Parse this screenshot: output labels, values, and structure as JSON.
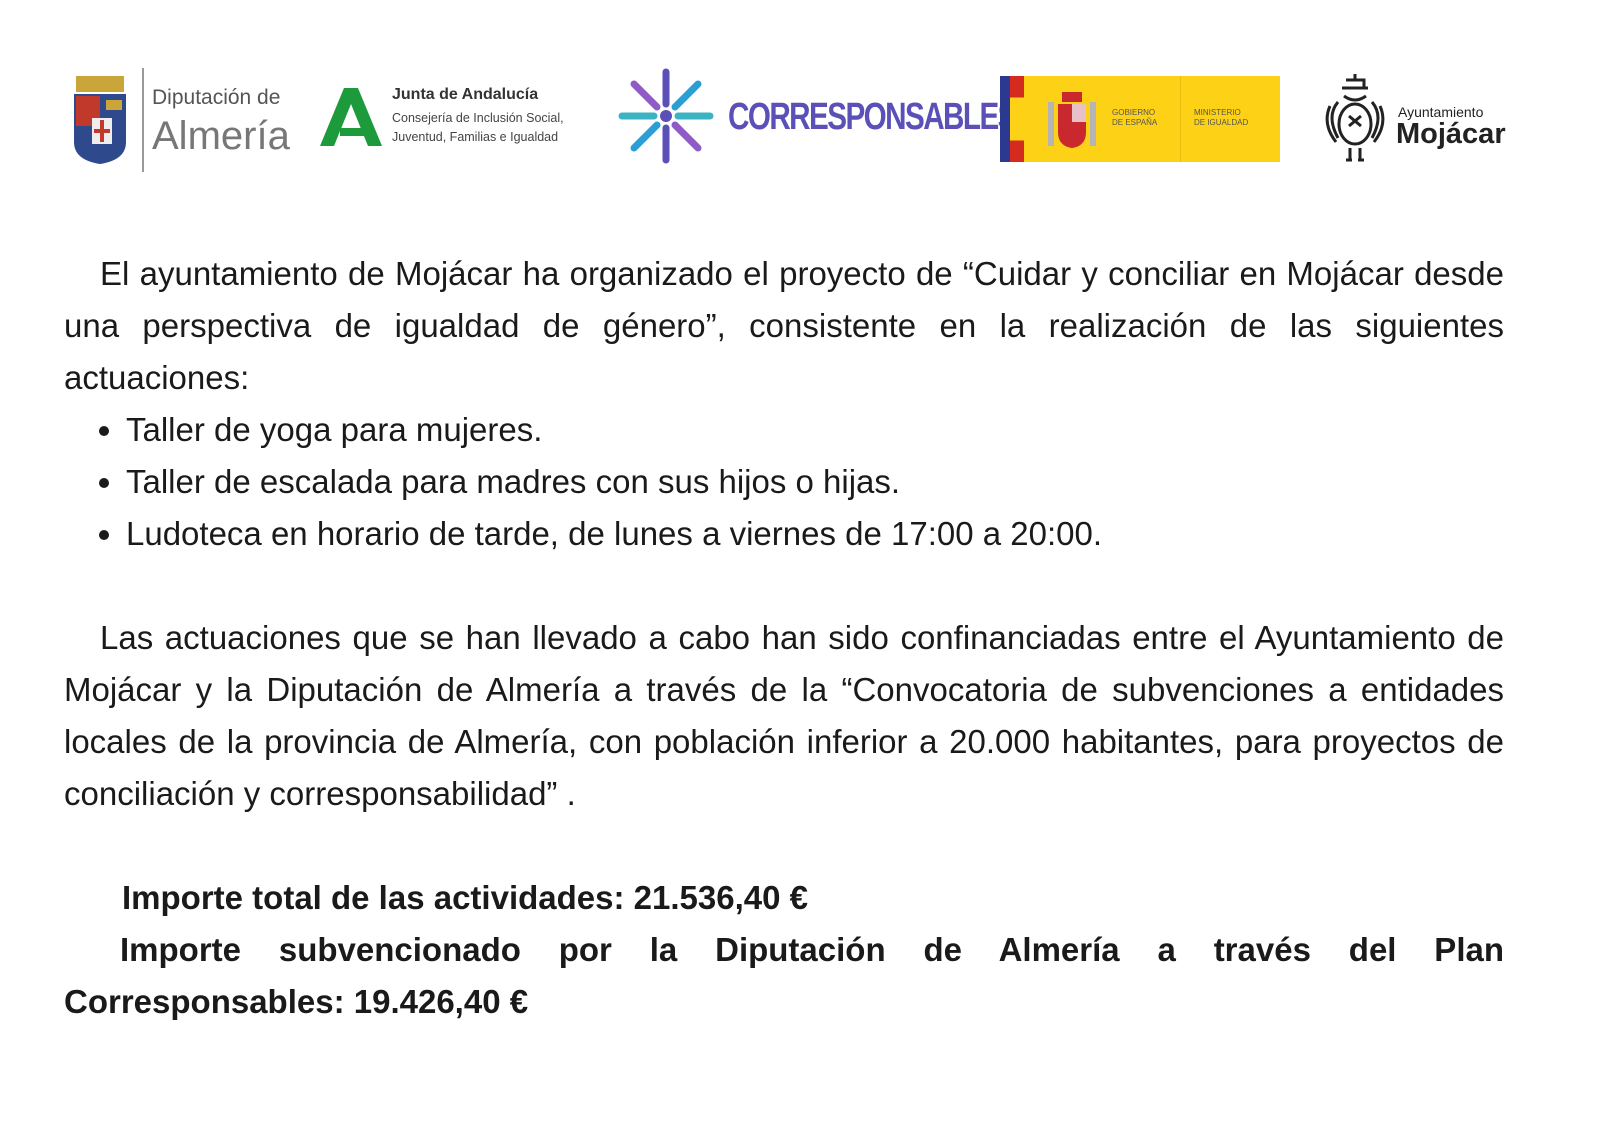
{
  "logos": {
    "diputacion": {
      "line1": "Diputación de",
      "line2": "Almería"
    },
    "junta": {
      "title": "Junta de Andalucía",
      "line1": "Consejería de Inclusión Social,",
      "line2": "Juventud, Familias e Igualdad",
      "color": "#1d9a3c"
    },
    "corresponsables": {
      "text": "CORRESPONSABLES",
      "color": "#5b4fb8"
    },
    "gobierno": {
      "left": "GOBIERNO",
      "left2": "DE ESPAÑA",
      "right": "MINISTERIO",
      "right2": "DE IGUALDAD",
      "color": "#fcd116"
    },
    "mojacar": {
      "line1": "Ayuntamiento",
      "line2": "Mojácar"
    }
  },
  "body": {
    "intro": "El ayuntamiento de Mojácar ha organizado el proyecto de “Cuidar y conciliar en Mojácar desde una perspectiva de igualdad de género”, consistente en la realización de las siguientes actuaciones:",
    "items": [
      "Taller de yoga para mujeres.",
      "Taller de escalada para madres con sus hijos o hijas.",
      "Ludoteca en horario de tarde, de lunes a viernes de 17:00 a 20:00."
    ],
    "funding": "Las actuaciones que se han llevado a cabo han sido confinanciadas entre el Ayuntamiento de Mojácar y la Diputación de Almería a través de la “Convocatoria de subvenciones a entidades locales de la provincia de Almería, con población inferior a 20.000 habitantes, para proyectos de conciliación y corresponsabilidad” .",
    "total": "Importe total de las actividades: 21.536,40 €",
    "subsidy": "Importe subvencionado por la Diputación de Almería a través del Plan Corresponsables: 19.426,40 €"
  }
}
